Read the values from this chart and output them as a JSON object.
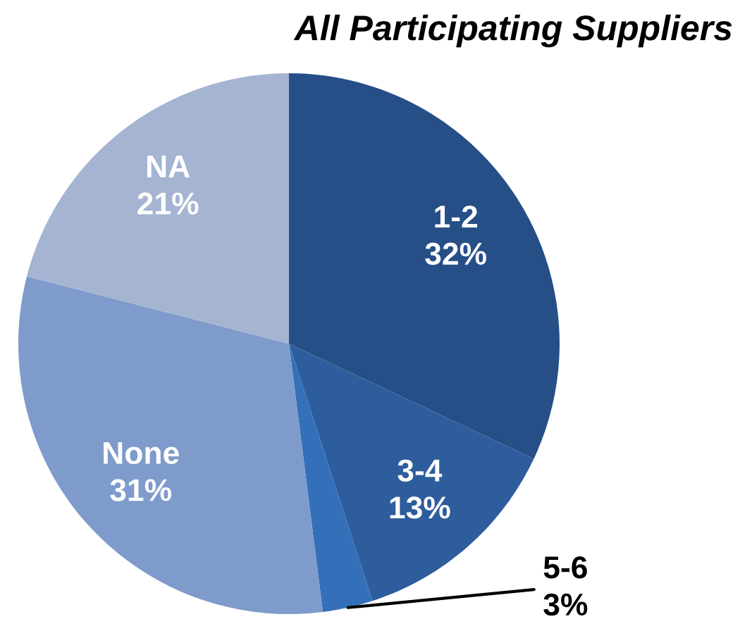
{
  "chart_data": {
    "type": "pie",
    "title": "All Participating Suppliers",
    "categories": [
      "1-2",
      "3-4",
      "5-6",
      "None",
      "NA"
    ],
    "values": [
      32,
      13,
      3,
      31,
      21
    ],
    "colors": [
      "#264f87",
      "#2d5d9c",
      "#3470ba",
      "#7e9bcb",
      "#a5b4d1"
    ],
    "value_labels": [
      "32%",
      "13%",
      "3%",
      "31%",
      "21%"
    ]
  }
}
